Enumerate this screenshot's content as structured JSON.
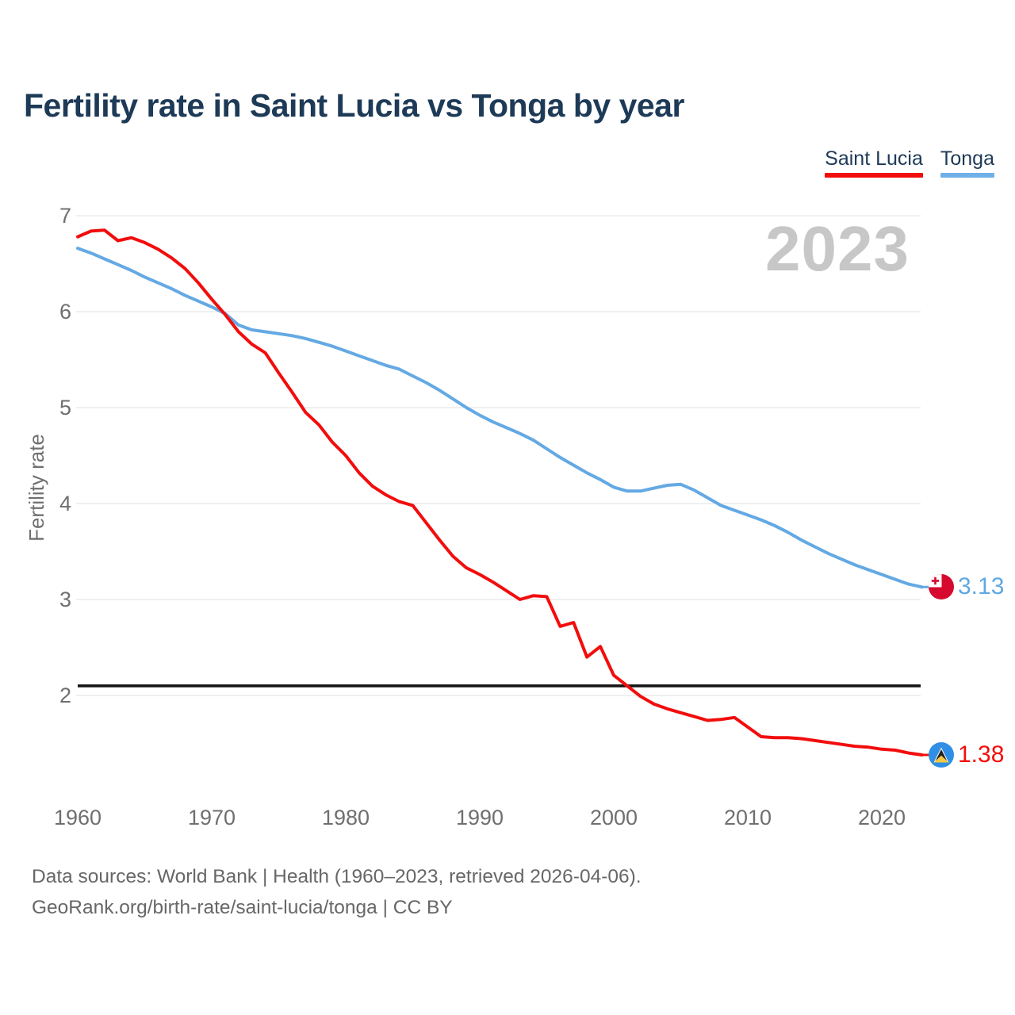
{
  "header": {
    "title": "Fertility rate in Saint Lucia vs Tonga by year"
  },
  "legend": {
    "items": [
      {
        "label": "Saint Lucia",
        "color": "#f20d0d"
      },
      {
        "label": "Tonga",
        "color": "#6fb0e8"
      }
    ]
  },
  "watermark": "2023",
  "chart_data": {
    "type": "line",
    "title": "Fertility rate in Saint Lucia vs Tonga by year",
    "xlabel": "",
    "ylabel": "Fertility rate",
    "grid": "horizontal",
    "legend_position": "top-right",
    "ylim": [
      1.25,
      7.15
    ],
    "xlim": [
      1960,
      2023
    ],
    "yticks": [
      2,
      3,
      4,
      5,
      6,
      7
    ],
    "xticks": [
      1960,
      1970,
      1980,
      1990,
      2000,
      2010,
      2020
    ],
    "reference_line": {
      "value": 2.1,
      "color": "#151515"
    },
    "x": [
      1960,
      1961,
      1962,
      1963,
      1964,
      1965,
      1966,
      1967,
      1968,
      1969,
      1970,
      1971,
      1972,
      1973,
      1974,
      1975,
      1976,
      1977,
      1978,
      1979,
      1980,
      1981,
      1982,
      1983,
      1984,
      1985,
      1986,
      1987,
      1988,
      1989,
      1990,
      1991,
      1992,
      1993,
      1994,
      1995,
      1996,
      1997,
      1998,
      1999,
      2000,
      2001,
      2002,
      2003,
      2004,
      2005,
      2006,
      2007,
      2008,
      2009,
      2010,
      2011,
      2012,
      2013,
      2014,
      2015,
      2016,
      2017,
      2018,
      2019,
      2020,
      2021,
      2022,
      2023
    ],
    "series": [
      {
        "name": "Saint Lucia",
        "color": "#f20d0d",
        "values": [
          6.78,
          6.84,
          6.85,
          6.74,
          6.77,
          6.72,
          6.65,
          6.56,
          6.45,
          6.3,
          6.13,
          5.97,
          5.79,
          5.66,
          5.57,
          5.36,
          5.16,
          4.95,
          4.82,
          4.64,
          4.5,
          4.32,
          4.18,
          4.09,
          4.02,
          3.98,
          3.8,
          3.62,
          3.45,
          3.33,
          3.26,
          3.18,
          3.09,
          3.0,
          3.04,
          3.03,
          2.72,
          2.76,
          2.4,
          2.51,
          2.21,
          2.1,
          1.99,
          1.91,
          1.86,
          1.82,
          1.78,
          1.74,
          1.75,
          1.77,
          1.67,
          1.57,
          1.56,
          1.56,
          1.55,
          1.53,
          1.51,
          1.49,
          1.47,
          1.46,
          1.44,
          1.43,
          1.4,
          1.38
        ]
      },
      {
        "name": "Tonga",
        "color": "#64a9e3",
        "values": [
          6.66,
          6.61,
          6.55,
          6.49,
          6.43,
          6.36,
          6.3,
          6.24,
          6.17,
          6.11,
          6.05,
          5.98,
          5.86,
          5.81,
          5.79,
          5.77,
          5.75,
          5.72,
          5.68,
          5.64,
          5.59,
          5.54,
          5.49,
          5.44,
          5.4,
          5.33,
          5.26,
          5.18,
          5.09,
          5.0,
          4.92,
          4.85,
          4.79,
          4.73,
          4.66,
          4.57,
          4.48,
          4.4,
          4.32,
          4.25,
          4.17,
          4.13,
          4.13,
          4.16,
          4.19,
          4.2,
          4.14,
          4.06,
          3.98,
          3.93,
          3.88,
          3.83,
          3.77,
          3.7,
          3.62,
          3.55,
          3.48,
          3.42,
          3.36,
          3.31,
          3.26,
          3.21,
          3.16,
          3.13
        ]
      }
    ]
  },
  "end_markers": {
    "tonga": {
      "value_label": "3.13",
      "label_color": "#5fa8e2",
      "flag": "tonga-flag-icon"
    },
    "saint_lucia": {
      "value_label": "1.38",
      "label_color": "#f20d0d",
      "flag": "saint-lucia-flag-icon"
    }
  },
  "footer": {
    "line1": "Data sources: World Bank | Health (1960–2023, retrieved 2026-04-06).",
    "line2": "GeoRank.org/birth-rate/saint-lucia/tonga | CC BY"
  }
}
